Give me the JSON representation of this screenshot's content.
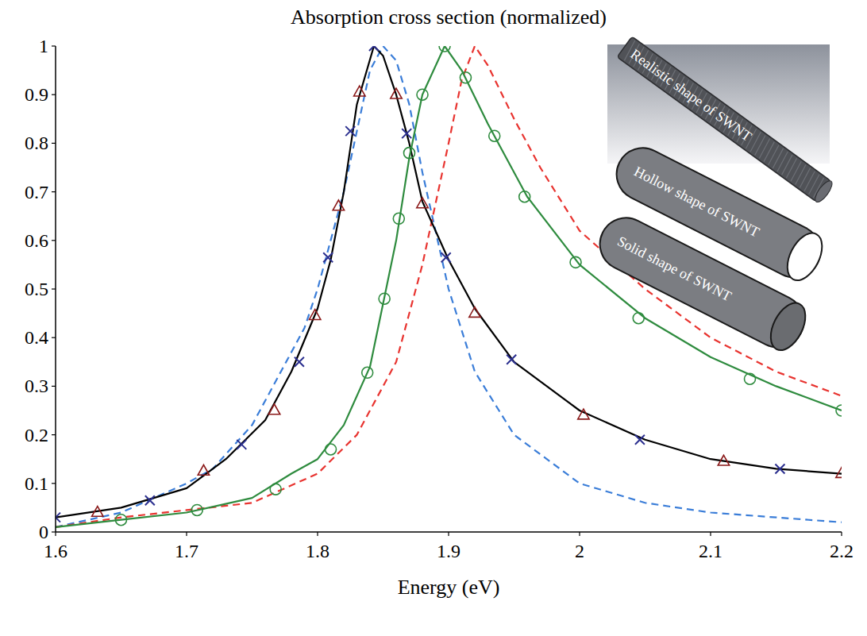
{
  "chart_data": {
    "type": "line",
    "title": "Absorption cross section (normalized)",
    "x_label": "Energy (eV)",
    "xlim": [
      1.6,
      2.2
    ],
    "xticks": [
      1.6,
      1.7,
      1.8,
      1.9,
      2,
      2.1,
      2.2
    ],
    "ylim": [
      0,
      1
    ],
    "yticks": [
      0,
      0.1,
      0.2,
      0.3,
      0.4,
      0.5,
      0.6,
      0.7,
      0.8,
      0.9,
      1
    ],
    "grid": false,
    "annotations": [
      "Realistic shape of SWNT",
      "Hollow shape of SWNT",
      "Solid shape of SWNT"
    ],
    "series": [
      {
        "type": "line",
        "color": "#3a7dd8",
        "line_style": "dashed",
        "x": [
          1.6,
          1.65,
          1.7,
          1.72,
          1.75,
          1.79,
          1.8,
          1.82,
          1.84,
          1.85,
          1.86,
          1.87,
          1.88,
          1.9,
          1.92,
          1.95,
          2.0,
          2.05,
          2.1,
          2.2
        ],
        "values": [
          0.01,
          0.04,
          0.1,
          0.13,
          0.22,
          0.42,
          0.5,
          0.7,
          0.95,
          1.0,
          0.97,
          0.88,
          0.74,
          0.5,
          0.33,
          0.2,
          0.1,
          0.06,
          0.04,
          0.02
        ]
      },
      {
        "type": "line",
        "color": "#e8332f",
        "line_style": "dashed",
        "x": [
          1.6,
          1.65,
          1.7,
          1.75,
          1.8,
          1.83,
          1.86,
          1.88,
          1.9,
          1.91,
          1.92,
          1.93,
          1.95,
          1.97,
          2.0,
          2.05,
          2.1,
          2.15,
          2.2
        ],
        "values": [
          0.01,
          0.03,
          0.045,
          0.06,
          0.12,
          0.2,
          0.35,
          0.55,
          0.8,
          0.93,
          1.0,
          0.96,
          0.85,
          0.75,
          0.62,
          0.5,
          0.4,
          0.33,
          0.28
        ]
      },
      {
        "type": "line",
        "color": "#000000",
        "line_style": "solid",
        "x": [
          1.6,
          1.65,
          1.7,
          1.73,
          1.76,
          1.78,
          1.8,
          1.81,
          1.82,
          1.83,
          1.843,
          1.85,
          1.86,
          1.87,
          1.88,
          1.9,
          1.92,
          1.95,
          2.0,
          2.05,
          2.1,
          2.15,
          2.2
        ],
        "values": [
          0.03,
          0.05,
          0.09,
          0.15,
          0.23,
          0.33,
          0.46,
          0.56,
          0.7,
          0.88,
          1.0,
          0.98,
          0.9,
          0.8,
          0.68,
          0.56,
          0.46,
          0.35,
          0.25,
          0.19,
          0.15,
          0.13,
          0.12
        ]
      },
      {
        "type": "line",
        "color": "#2e8b3e",
        "line_style": "solid",
        "x": [
          1.6,
          1.65,
          1.7,
          1.75,
          1.78,
          1.8,
          1.82,
          1.84,
          1.86,
          1.87,
          1.88,
          1.897,
          1.91,
          1.93,
          1.96,
          2.0,
          2.05,
          2.1,
          2.15,
          2.2
        ],
        "values": [
          0.01,
          0.025,
          0.04,
          0.07,
          0.12,
          0.15,
          0.22,
          0.34,
          0.6,
          0.77,
          0.9,
          1.0,
          0.95,
          0.84,
          0.69,
          0.55,
          0.44,
          0.36,
          0.3,
          0.25
        ]
      },
      {
        "type": "scatter",
        "color": "#8b1a1a",
        "marker": "triangle",
        "x": [
          1.632,
          1.713,
          1.767,
          1.798,
          1.816,
          1.832,
          1.86,
          1.88,
          1.92,
          2.003,
          2.11,
          2.2
        ],
        "values": [
          0.04,
          0.125,
          0.25,
          0.445,
          0.67,
          0.905,
          0.9,
          0.675,
          0.45,
          0.24,
          0.145,
          0.12
        ]
      },
      {
        "type": "scatter",
        "color": "#2b2f8f",
        "marker": "x",
        "x": [
          1.6,
          1.672,
          1.742,
          1.786,
          1.808,
          1.825,
          1.843,
          1.868,
          1.898,
          1.948,
          2.046,
          2.153
        ],
        "values": [
          0.03,
          0.065,
          0.18,
          0.35,
          0.565,
          0.825,
          1.0,
          0.82,
          0.565,
          0.355,
          0.19,
          0.13
        ]
      },
      {
        "type": "scatter",
        "color": "#2e8b3e",
        "marker": "circle",
        "x": [
          1.65,
          1.708,
          1.768,
          1.81,
          1.838,
          1.851,
          1.862,
          1.87,
          1.88,
          1.897,
          1.913,
          1.935,
          1.958,
          1.997,
          2.045,
          2.13,
          2.2
        ],
        "values": [
          0.025,
          0.045,
          0.088,
          0.17,
          0.328,
          0.48,
          0.645,
          0.78,
          0.9,
          1.0,
          0.935,
          0.815,
          0.69,
          0.555,
          0.44,
          0.315,
          0.25
        ]
      }
    ]
  }
}
